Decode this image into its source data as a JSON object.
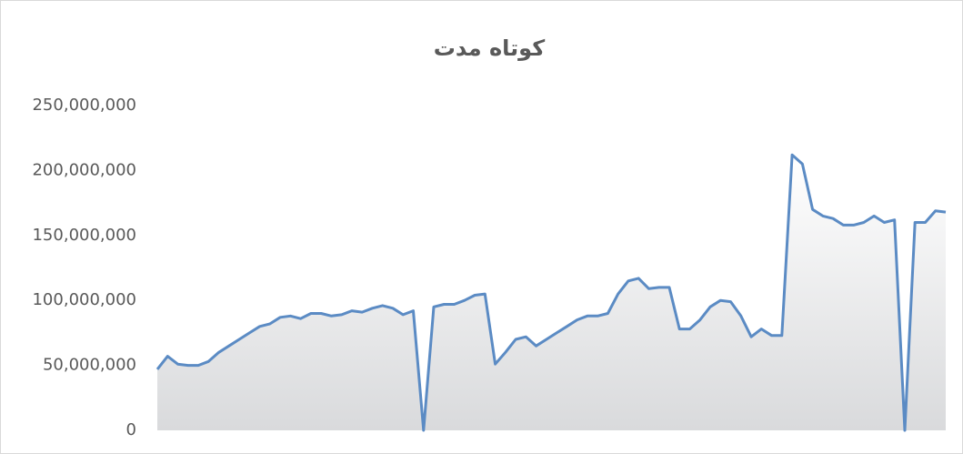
{
  "chart_data": {
    "type": "area",
    "title": "کوتاه مدت",
    "series": [
      {
        "color": "#5b8bc4",
        "values": [
          47000000,
          57000000,
          51000000,
          50000000,
          50000000,
          53000000,
          60000000,
          65000000,
          70000000,
          75000000,
          80000000,
          82000000,
          87000000,
          88000000,
          86000000,
          90000000,
          90000000,
          88000000,
          89000000,
          92000000,
          91000000,
          94000000,
          96000000,
          94000000,
          89000000,
          92000000,
          0,
          95000000,
          97000000,
          97000000,
          100000000,
          104000000,
          105000000,
          51000000,
          60000000,
          70000000,
          72000000,
          65000000,
          70000000,
          75000000,
          80000000,
          85000000,
          88000000,
          88000000,
          90000000,
          105000000,
          115000000,
          117000000,
          109000000,
          110000000,
          110000000,
          78000000,
          78000000,
          85000000,
          95000000,
          100000000,
          99000000,
          88000000,
          72000000,
          78000000,
          73000000,
          73000000,
          212000000,
          205000000,
          170000000,
          165000000,
          163000000,
          158000000,
          158000000,
          160000000,
          165000000,
          160000000,
          162000000,
          0,
          160000000,
          160000000,
          169000000,
          168000000
        ]
      }
    ],
    "ylim": [
      0,
      250000000
    ],
    "yticks": [
      0,
      {
        "value": 50000000,
        "label": "50,000,000"
      },
      {
        "value": 100000000,
        "label": "100,000,000"
      },
      {
        "value": 150000000,
        "label": "150,000,000"
      },
      {
        "value": 200000000,
        "label": "200,000,000"
      },
      {
        "value": 250000000,
        "label": "250,000,000"
      }
    ]
  }
}
